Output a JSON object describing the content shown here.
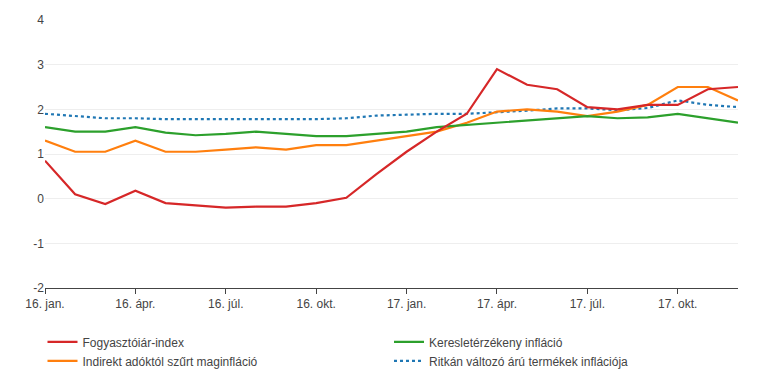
{
  "chart_data": {
    "type": "line",
    "categories": [
      "16. jan.",
      null,
      null,
      "16. ápr.",
      null,
      null,
      "16. júl.",
      null,
      null,
      "16. okt.",
      null,
      null,
      "17. jan.",
      null,
      null,
      "17. ápr.",
      null,
      null,
      "17. júl.",
      null,
      null,
      "17. okt.",
      null,
      null
    ],
    "series": [
      {
        "name": "Ritkán változó árú termékek inflációja",
        "line_style": "dotted",
        "values": [
          1.9,
          1.85,
          1.8,
          1.8,
          1.78,
          1.78,
          1.78,
          1.78,
          1.78,
          1.78,
          1.8,
          1.86,
          1.88,
          1.9,
          1.9,
          1.93,
          1.97,
          2.02,
          2.02,
          1.98,
          2.03,
          2.2,
          2.1,
          2.05
        ]
      },
      {
        "name": "Indirekt adóktól szűrt maginfláció",
        "line_style": "solid",
        "values": [
          1.3,
          1.05,
          1.05,
          1.3,
          1.05,
          1.05,
          1.1,
          1.15,
          1.1,
          1.2,
          1.2,
          1.3,
          1.4,
          1.5,
          1.7,
          1.95,
          2.0,
          1.95,
          1.85,
          1.95,
          2.1,
          2.5,
          2.5,
          2.2
        ]
      },
      {
        "name": "Keresletérzékeny infláció",
        "line_style": "solid",
        "values": [
          1.6,
          1.5,
          1.5,
          1.6,
          1.48,
          1.42,
          1.45,
          1.5,
          1.45,
          1.4,
          1.4,
          1.45,
          1.5,
          1.6,
          1.65,
          1.7,
          1.75,
          1.8,
          1.85,
          1.8,
          1.82,
          1.9,
          1.8,
          1.7
        ]
      },
      {
        "name": "Fogyasztóiár-index",
        "line_style": "solid",
        "values": [
          0.85,
          0.1,
          -0.12,
          0.18,
          -0.1,
          -0.15,
          -0.2,
          -0.18,
          -0.18,
          -0.1,
          0.02,
          0.55,
          1.05,
          1.5,
          1.9,
          2.9,
          2.55,
          2.45,
          2.05,
          2.0,
          2.1,
          2.1,
          2.45,
          2.5
        ]
      }
    ],
    "ylim": [
      -2,
      4
    ],
    "yticks": [
      -2,
      -1,
      0,
      1,
      2,
      3,
      4
    ],
    "grid": true,
    "legend": "bottom"
  }
}
